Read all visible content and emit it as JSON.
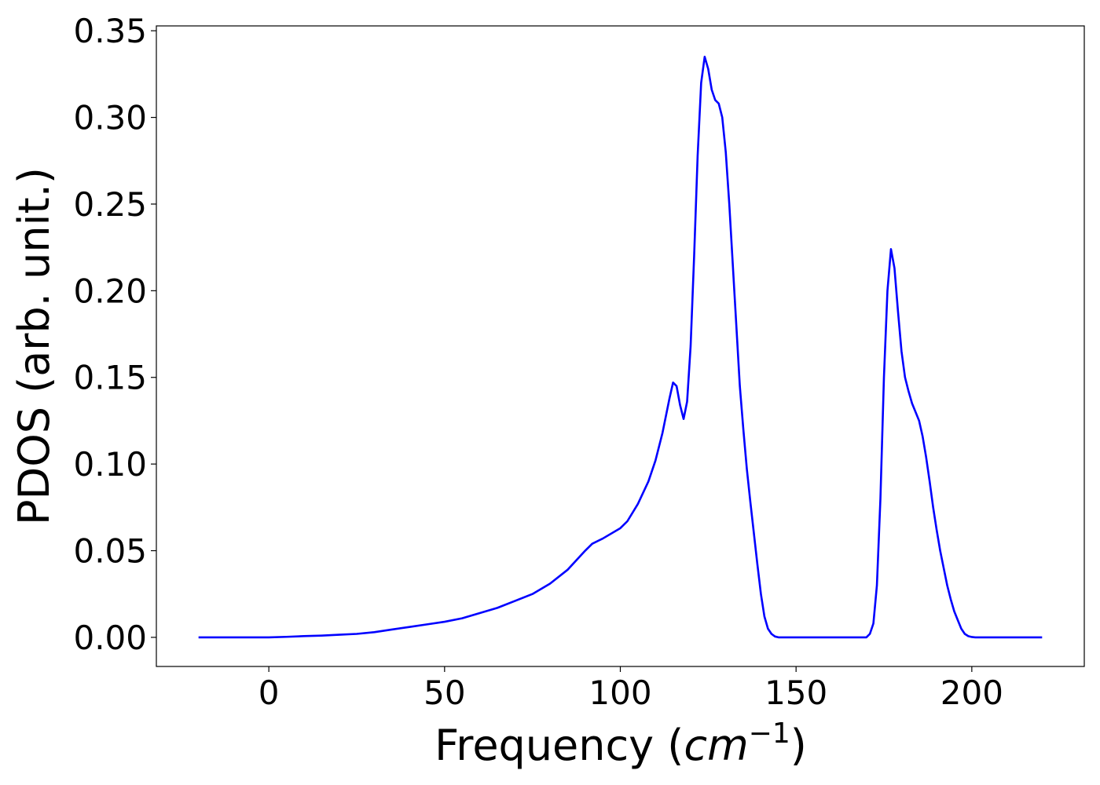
{
  "chart_data": {
    "type": "line",
    "title": "",
    "xlabel": {
      "prefix": "Frequency (",
      "math": "cm",
      "exponent": "−1",
      "suffix": ")"
    },
    "ylabel": "PDOS (arb. unit.)",
    "xlim": [
      -32,
      232
    ],
    "ylim": [
      -0.0168,
      0.3528
    ],
    "xticks": [
      0,
      50,
      100,
      150,
      200
    ],
    "xtick_labels": [
      "0",
      "50",
      "100",
      "150",
      "200"
    ],
    "yticks": [
      0.0,
      0.05,
      0.1,
      0.15,
      0.2,
      0.25,
      0.3,
      0.35
    ],
    "ytick_labels": [
      "0.00",
      "0.05",
      "0.10",
      "0.15",
      "0.20",
      "0.25",
      "0.30",
      "0.35"
    ],
    "grid": false,
    "series": [
      {
        "color": "#0000ff",
        "x": [
          -20,
          0,
          5,
          10,
          15,
          20,
          25,
          30,
          35,
          40,
          45,
          50,
          55,
          60,
          65,
          70,
          75,
          80,
          85,
          90,
          92,
          95,
          100,
          102,
          105,
          108,
          110,
          112,
          114,
          115,
          116,
          117,
          118,
          119,
          120,
          121,
          122,
          123,
          124,
          125,
          126,
          127,
          128,
          129,
          130,
          131,
          132,
          133,
          134,
          135,
          136,
          137,
          138,
          139,
          140,
          141,
          142,
          143,
          144,
          145,
          146,
          147,
          148,
          149,
          150,
          160,
          170,
          171,
          172,
          173,
          174,
          175,
          176,
          177,
          178,
          179,
          180,
          181,
          182,
          183,
          184,
          185,
          186,
          187,
          188,
          189,
          190,
          191,
          192,
          193,
          194,
          195,
          196,
          197,
          198,
          199,
          200,
          201,
          202,
          203,
          204,
          205,
          210,
          220
        ],
        "y": [
          0,
          0,
          0.0003,
          0.0007,
          0.001,
          0.0015,
          0.002,
          0.003,
          0.0045,
          0.006,
          0.0075,
          0.009,
          0.011,
          0.014,
          0.017,
          0.021,
          0.025,
          0.031,
          0.039,
          0.05,
          0.054,
          0.057,
          0.063,
          0.067,
          0.077,
          0.09,
          0.102,
          0.118,
          0.138,
          0.147,
          0.145,
          0.134,
          0.126,
          0.136,
          0.168,
          0.22,
          0.278,
          0.32,
          0.335,
          0.328,
          0.316,
          0.31,
          0.308,
          0.3,
          0.28,
          0.25,
          0.215,
          0.18,
          0.145,
          0.12,
          0.097,
          0.078,
          0.06,
          0.042,
          0.025,
          0.012,
          0.005,
          0.002,
          0.0005,
          0,
          0,
          0,
          0,
          0,
          0,
          0,
          0,
          0.002,
          0.008,
          0.03,
          0.08,
          0.15,
          0.2,
          0.224,
          0.213,
          0.188,
          0.165,
          0.15,
          0.142,
          0.135,
          0.13,
          0.125,
          0.116,
          0.104,
          0.09,
          0.075,
          0.062,
          0.05,
          0.04,
          0.03,
          0.022,
          0.015,
          0.01,
          0.005,
          0.002,
          0.0007,
          0.0002,
          0,
          0,
          0,
          0,
          0,
          0,
          0
        ]
      }
    ]
  }
}
